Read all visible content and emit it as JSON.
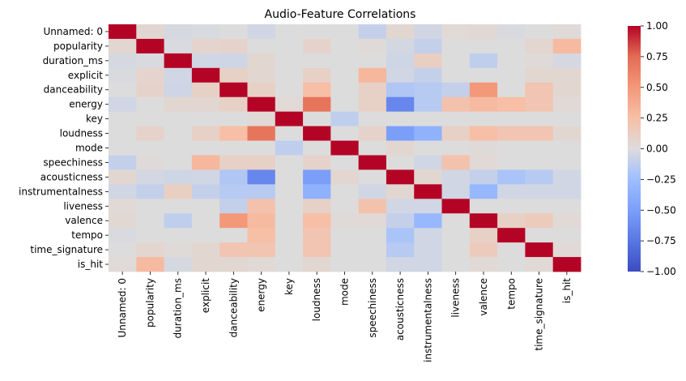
{
  "chart_data": {
    "type": "heatmap",
    "title": "Audio-Feature Correlations",
    "labels": [
      "Unnamed: 0",
      "popularity",
      "duration_ms",
      "explicit",
      "danceability",
      "energy",
      "key",
      "loudness",
      "mode",
      "speechiness",
      "acousticness",
      "instrumentalness",
      "liveness",
      "valence",
      "tempo",
      "time_signature",
      "is_hit"
    ],
    "colormap": "coolwarm",
    "vmin": -1.0,
    "vmax": 1.0,
    "colorbar_ticks": [
      "1.00",
      "0.75",
      "0.50",
      "0.25",
      "0.00",
      "−0.25",
      "−0.50",
      "−0.75",
      "−1.00"
    ],
    "colorbar_tick_values": [
      1.0,
      0.75,
      0.5,
      0.25,
      0.0,
      -0.25,
      -0.5,
      -0.75,
      -1.0
    ],
    "matrix": [
      [
        1.0,
        0.05,
        -0.03,
        -0.02,
        0.0,
        -0.05,
        0.0,
        0.0,
        0.0,
        -0.1,
        0.05,
        -0.05,
        0.03,
        0.04,
        -0.02,
        0.0,
        0.02
      ],
      [
        0.05,
        1.0,
        -0.02,
        0.07,
        0.08,
        0.0,
        0.0,
        0.08,
        0.0,
        0.02,
        -0.04,
        -0.1,
        0.0,
        0.0,
        0.0,
        0.06,
        0.28
      ],
      [
        -0.03,
        -0.02,
        1.0,
        -0.05,
        -0.06,
        0.05,
        0.0,
        0.0,
        0.0,
        0.0,
        -0.06,
        0.12,
        0.0,
        -0.12,
        0.0,
        0.02,
        -0.03
      ],
      [
        -0.02,
        0.07,
        -0.05,
        1.0,
        0.1,
        0.05,
        0.0,
        0.1,
        0.0,
        0.3,
        -0.05,
        -0.1,
        0.0,
        0.0,
        0.0,
        0.05,
        0.05
      ],
      [
        0.0,
        0.08,
        -0.06,
        0.1,
        1.0,
        0.1,
        0.0,
        0.25,
        0.0,
        0.1,
        -0.18,
        -0.15,
        -0.1,
        0.5,
        0.0,
        0.2,
        0.05
      ],
      [
        -0.05,
        0.0,
        0.05,
        0.05,
        0.1,
        1.0,
        0.03,
        0.7,
        0.0,
        0.1,
        -0.65,
        -0.15,
        0.22,
        0.28,
        0.25,
        0.2,
        0.03
      ],
      [
        0.0,
        0.0,
        0.0,
        0.0,
        0.0,
        0.03,
        1.0,
        0.0,
        -0.12,
        0.0,
        0.0,
        0.0,
        0.0,
        0.0,
        0.0,
        0.0,
        0.0
      ],
      [
        0.0,
        0.08,
        0.0,
        0.1,
        0.25,
        0.7,
        0.0,
        1.0,
        0.0,
        0.08,
        -0.5,
        -0.35,
        0.1,
        0.25,
        0.2,
        0.2,
        0.05
      ],
      [
        0.0,
        0.0,
        0.0,
        0.0,
        0.0,
        0.0,
        -0.12,
        0.0,
        1.0,
        0.0,
        0.05,
        0.0,
        0.0,
        0.02,
        0.0,
        0.0,
        0.0
      ],
      [
        -0.1,
        0.02,
        0.0,
        0.3,
        0.1,
        0.1,
        0.0,
        0.08,
        0.0,
        1.0,
        0.0,
        -0.05,
        0.22,
        0.03,
        0.0,
        0.0,
        0.0
      ],
      [
        0.05,
        -0.04,
        -0.06,
        -0.05,
        -0.18,
        -0.65,
        0.0,
        -0.5,
        0.05,
        0.0,
        1.0,
        0.05,
        -0.05,
        -0.1,
        -0.2,
        -0.15,
        -0.05
      ],
      [
        -0.05,
        -0.1,
        0.12,
        -0.1,
        -0.15,
        -0.15,
        0.0,
        -0.35,
        0.0,
        -0.05,
        0.05,
        1.0,
        -0.05,
        -0.3,
        -0.05,
        -0.05,
        -0.05
      ],
      [
        0.03,
        0.0,
        0.0,
        0.0,
        -0.1,
        0.22,
        0.0,
        0.1,
        0.0,
        0.22,
        -0.05,
        -0.05,
        1.0,
        0.0,
        0.0,
        0.0,
        0.0
      ],
      [
        0.04,
        0.0,
        -0.12,
        0.0,
        0.5,
        0.28,
        0.0,
        0.25,
        0.02,
        0.03,
        -0.1,
        -0.3,
        0.0,
        1.0,
        0.1,
        0.15,
        0.03
      ],
      [
        -0.02,
        0.0,
        0.0,
        0.0,
        0.0,
        0.25,
        0.0,
        0.2,
        0.0,
        0.0,
        -0.2,
        -0.05,
        0.0,
        0.1,
        1.0,
        0.0,
        0.0
      ],
      [
        0.0,
        0.06,
        0.02,
        0.05,
        0.2,
        0.2,
        0.0,
        0.2,
        0.0,
        0.0,
        -0.15,
        -0.05,
        0.0,
        0.15,
        0.0,
        1.0,
        0.03
      ],
      [
        0.02,
        0.28,
        -0.03,
        0.05,
        0.05,
        0.03,
        0.0,
        0.05,
        0.0,
        0.0,
        -0.05,
        -0.05,
        0.0,
        0.03,
        0.0,
        0.03,
        1.0
      ]
    ]
  }
}
